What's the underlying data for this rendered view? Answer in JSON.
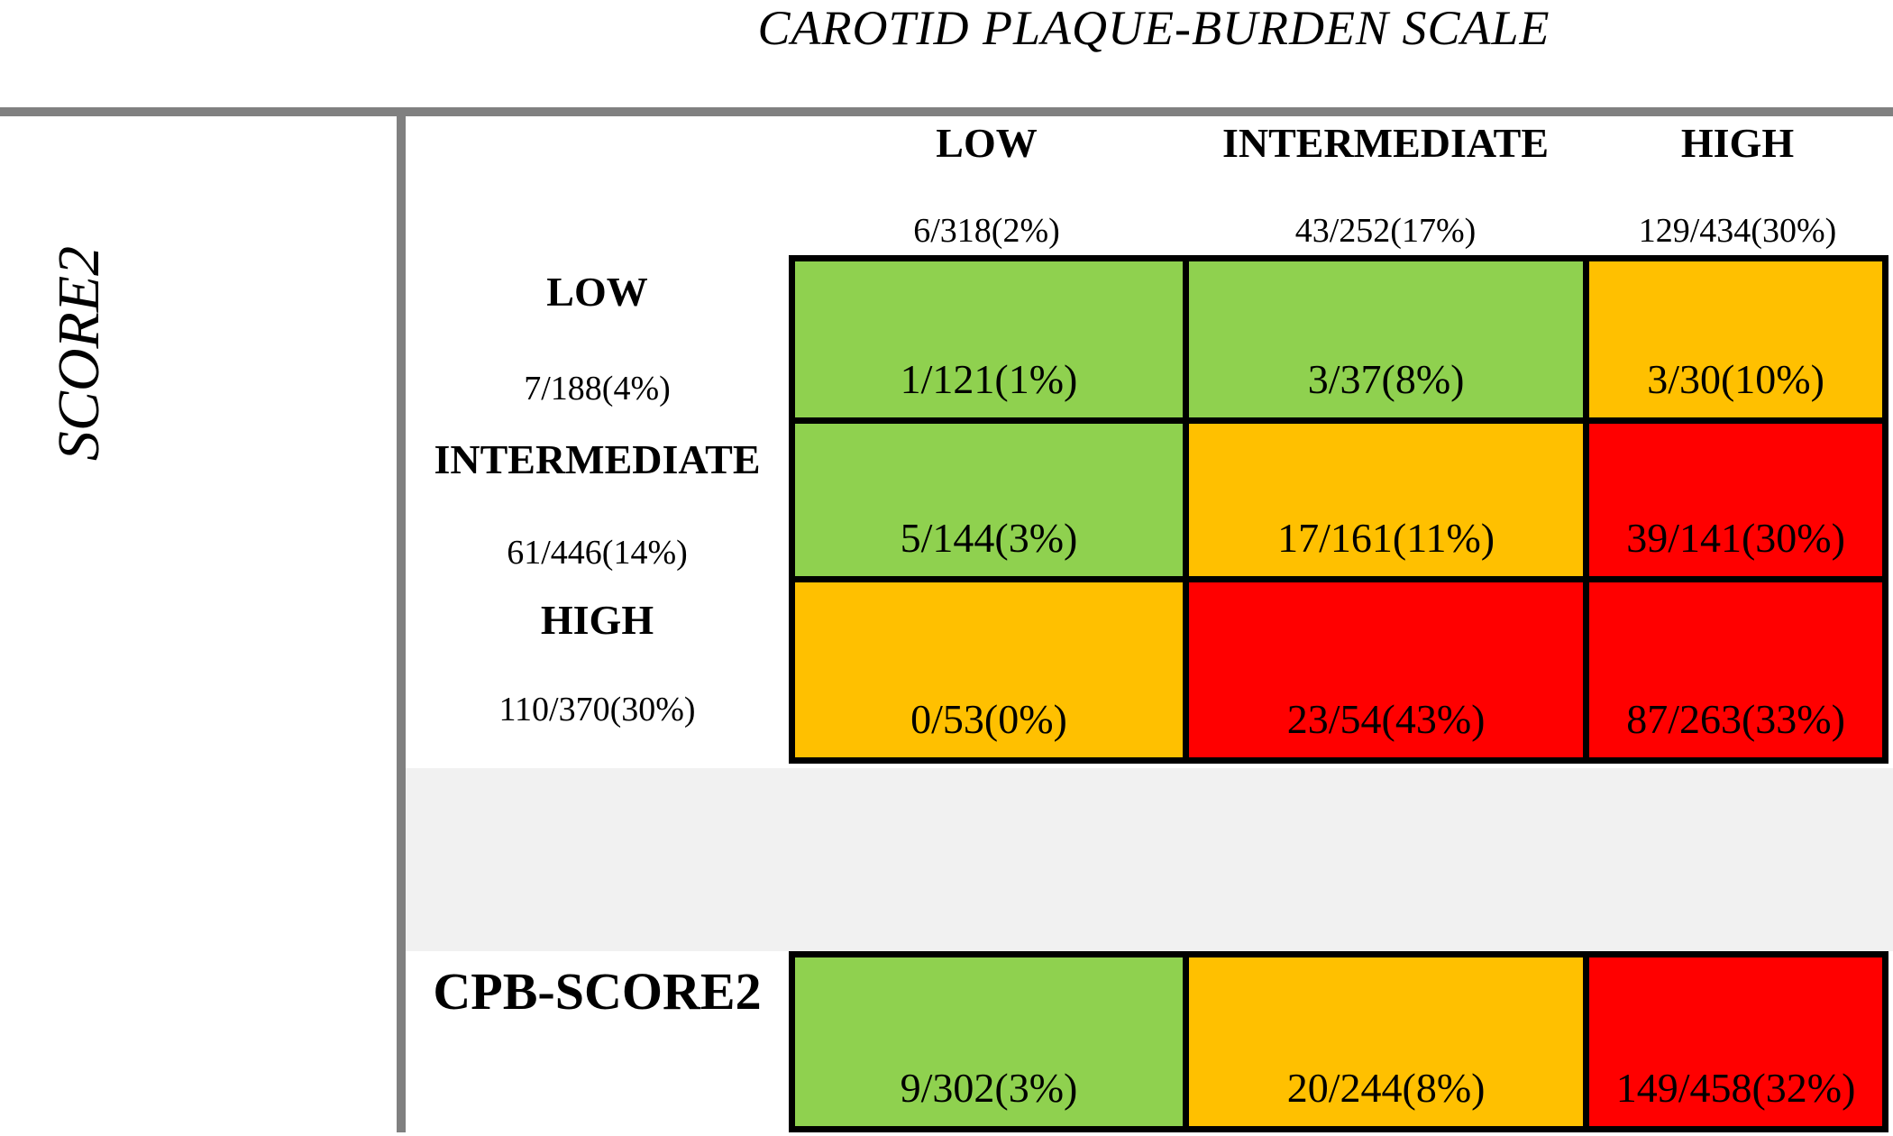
{
  "chart_data": {
    "type": "heatmap",
    "title": "CAROTID PLAQUE-BURDEN SCALE",
    "y_axis_label": "SCORE2",
    "x_axis_label": "CAROTID PLAQUE-BURDEN SCALE",
    "x_categories": [
      "LOW",
      "INTERMEDIATE",
      "HIGH"
    ],
    "y_categories": [
      "LOW",
      "INTERMEDIATE",
      "HIGH"
    ],
    "column_totals": [
      "6/318(2%)",
      "43/252(17%)",
      "129/434(30%)"
    ],
    "row_totals": [
      "7/188(4%)",
      "61/446(14%)",
      "110/370(30%)"
    ],
    "cells": [
      [
        "1/121(1%)",
        "3/37(8%)",
        "3/30(10%)"
      ],
      [
        "5/144(3%)",
        "17/161(11%)",
        "39/141(30%)"
      ],
      [
        "0/53(0%)",
        "23/54(43%)",
        "87/263(33%)"
      ]
    ],
    "cell_levels": [
      [
        "green",
        "green",
        "orange"
      ],
      [
        "green",
        "orange",
        "red"
      ],
      [
        "orange",
        "red",
        "red"
      ]
    ],
    "summary_row": {
      "label": "CPB-SCORE2",
      "values": [
        "9/302(3%)",
        "20/244(8%)",
        "149/458(32%)"
      ],
      "levels": [
        "green",
        "orange",
        "red"
      ]
    },
    "colors": {
      "green": "#8FD14F",
      "orange": "#FFC000",
      "red": "#FF0000",
      "separator_band": "#F1F1F1",
      "axis_lines": "#808080",
      "cell_border": "#000000"
    },
    "legend_position": "none",
    "grid": "black cell borders"
  }
}
